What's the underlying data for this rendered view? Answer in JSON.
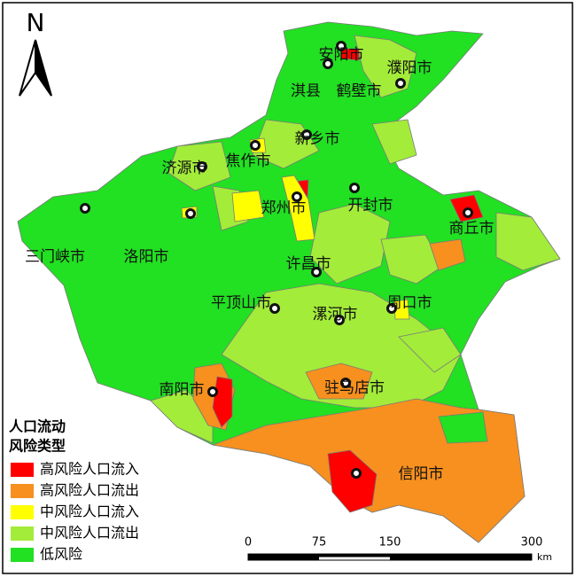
{
  "north_arrow": {
    "label": "N"
  },
  "map": {
    "labels": [
      "安阳市",
      "濮阳市",
      "淇县",
      "鹤壁市",
      "新乡市",
      "济源市",
      "焦作市",
      "郑州市",
      "开封市",
      "商丘市",
      "三门峡市",
      "洛阳市",
      "许昌市",
      "平顶山市",
      "漯河市",
      "周口市",
      "南阳市",
      "驻马店市",
      "信阳市"
    ]
  },
  "legend": {
    "title": [
      "人口流动",
      "风险类型"
    ],
    "items": [
      {
        "name": "高风险人口流入",
        "color": "#ff0000"
      },
      {
        "name": "高风险人口流出",
        "color": "#f7901e"
      },
      {
        "name": "中风险人口流入",
        "color": "#ffff00"
      },
      {
        "name": "中风险人口流出",
        "color": "#a3ec3a"
      },
      {
        "name": "低风险",
        "color": "#22e022"
      }
    ]
  },
  "scale_bar": {
    "ticks": [
      0,
      75,
      150,
      300
    ],
    "unit": "km"
  }
}
